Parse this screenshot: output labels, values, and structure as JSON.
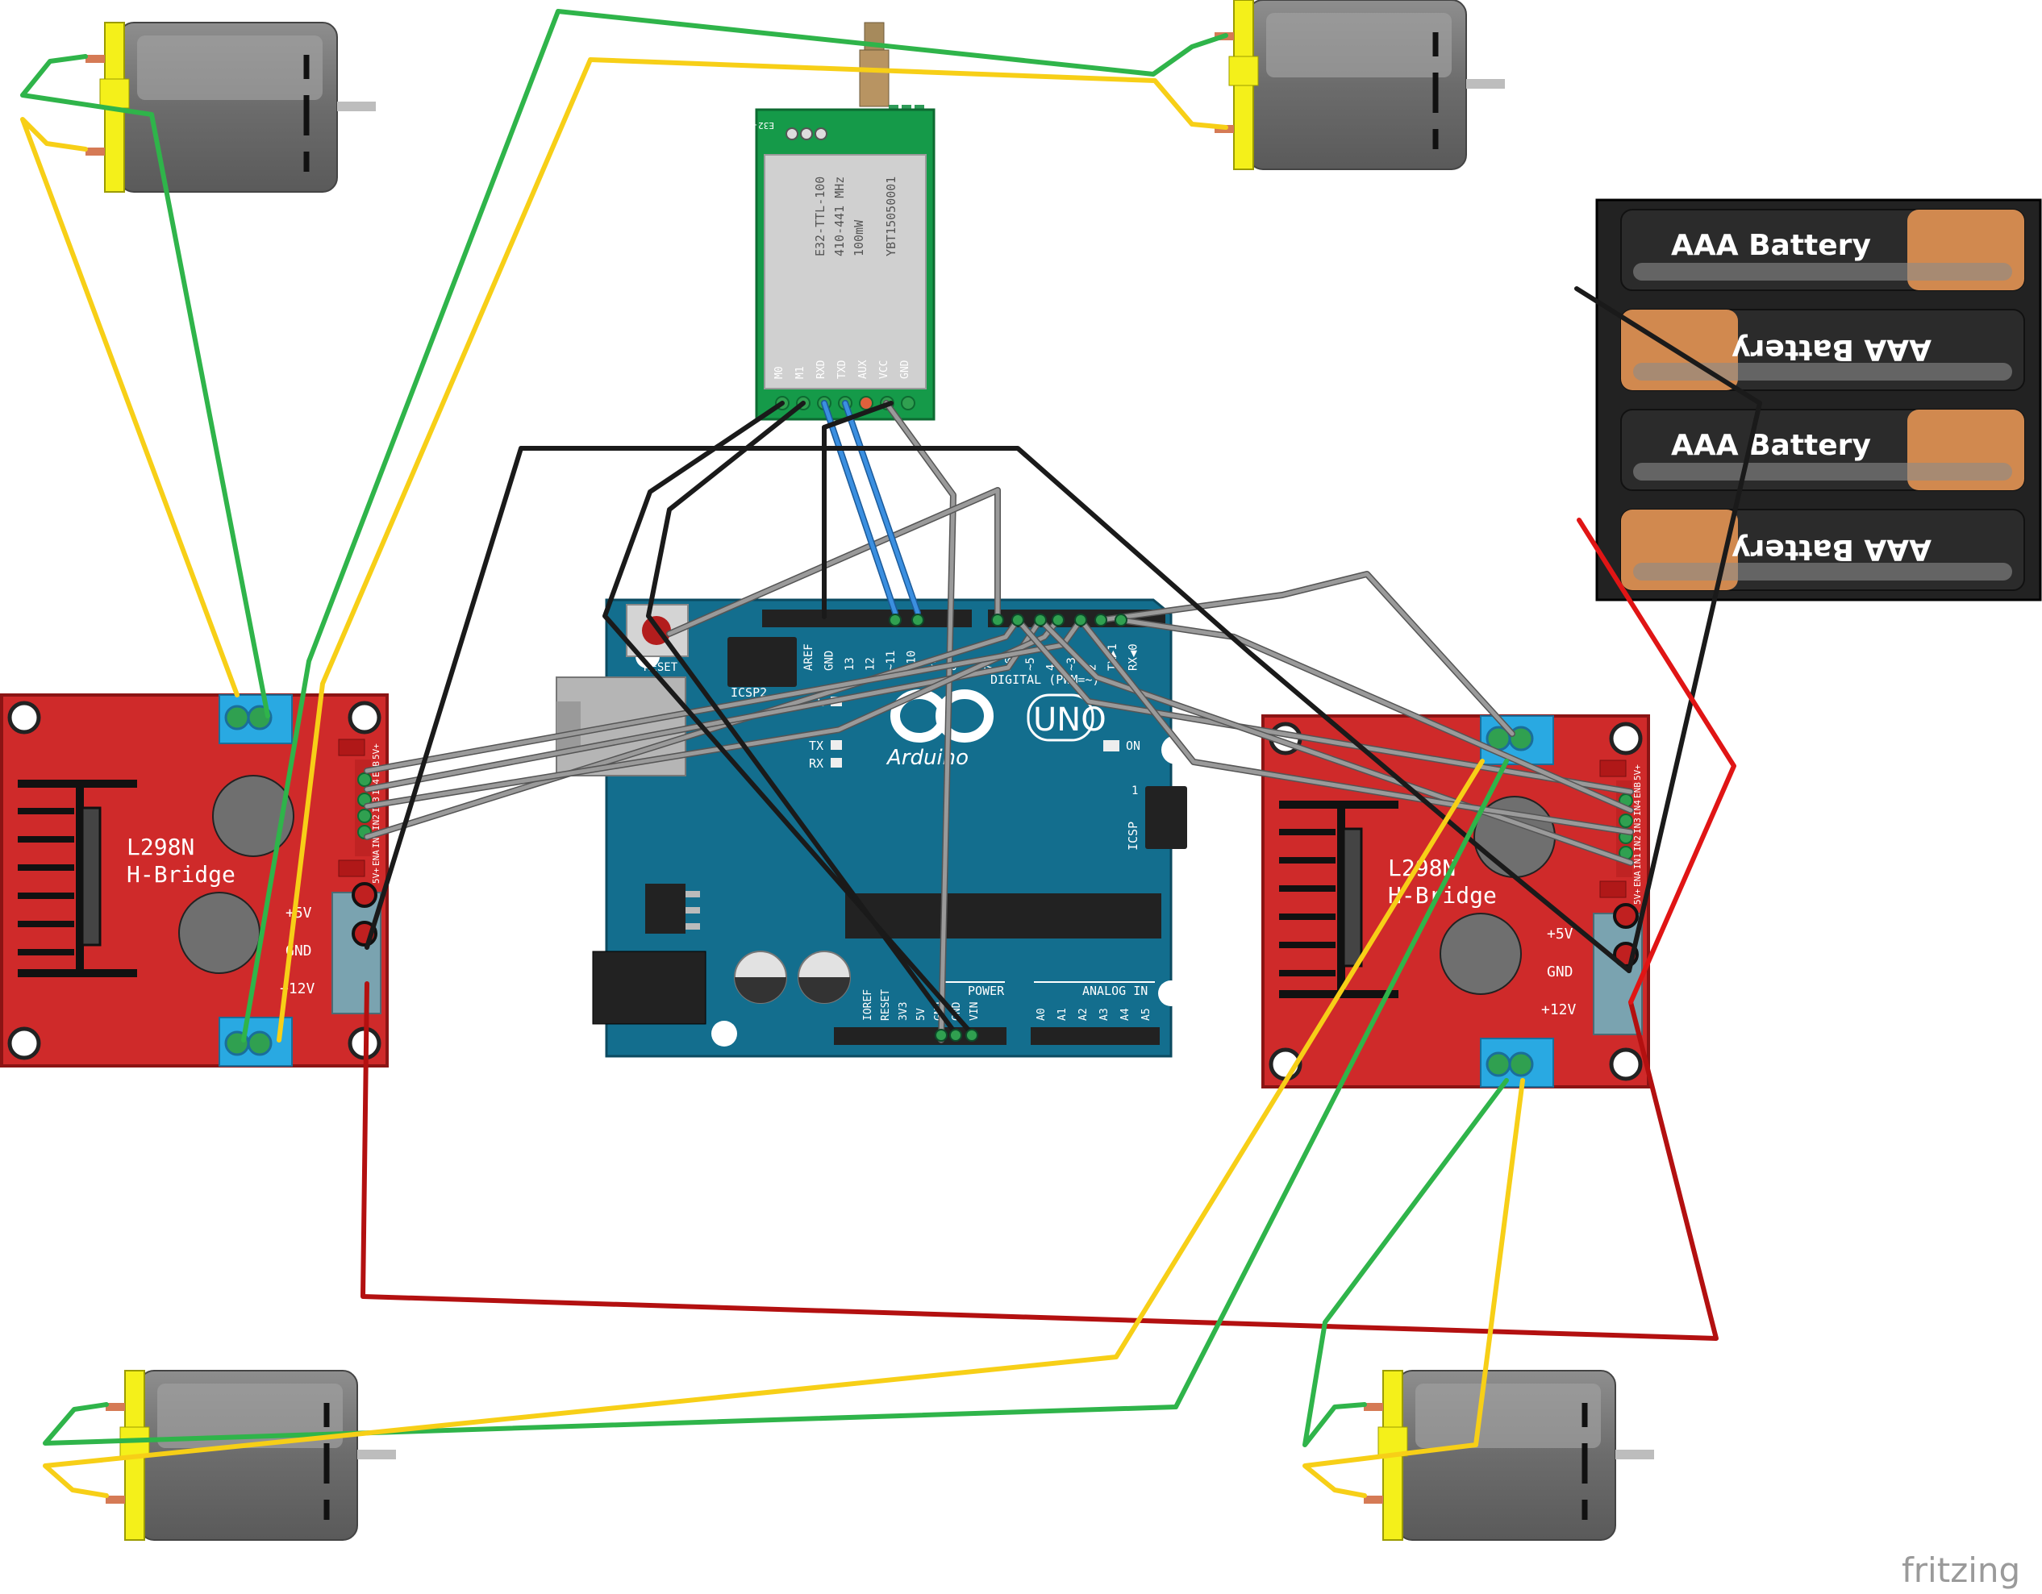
{
  "radio": {
    "board_label": "E32-TTL-100 V2.1",
    "model": "E32-TTL-100",
    "freq": "410-441 MHz",
    "power": "100mW",
    "serial": "YBT15050001",
    "pins": [
      "M0",
      "M1",
      "RXD",
      "TXD",
      "AUX",
      "VCC",
      "GND"
    ]
  },
  "arduino": {
    "uno": "UNO",
    "brand": "Arduino",
    "reset": "RESET",
    "icsp2": "ICSP2",
    "icsp": "ICSP",
    "icsp_pin": "1",
    "digital": "DIGITAL (PWM=~)",
    "on": "ON",
    "l": "L",
    "tx": "TX",
    "rx": "RX",
    "header_pins": [
      "AREF",
      "GND",
      "13",
      "12",
      "~11",
      "~10",
      "~9",
      "8",
      "7",
      "~6",
      "~5",
      "4",
      "~3",
      "2",
      "TX▶1",
      "RX◀0"
    ],
    "power_label": "POWER",
    "power_pins": [
      "IOREF",
      "RESET",
      "3V3",
      "5V",
      "GND",
      "GND",
      "VIN"
    ],
    "analog_label": "ANALOG IN",
    "analog_pins": [
      "A0",
      "A1",
      "A2",
      "A3",
      "A4",
      "A5"
    ]
  },
  "hbridge": {
    "title_line1": "L298N",
    "title_line2": "H-Bridge",
    "label_5v": "+5V",
    "label_gnd": "GND",
    "label_12v": "+12V",
    "enable_pins": [
      "5V+",
      "ENB",
      "IN4",
      "IN3",
      "IN2",
      "IN1",
      "ENA",
      "5V+"
    ]
  },
  "battery": {
    "cells": [
      "AAA Battery",
      "AAA Battery",
      "AAA Battery",
      "AAA Battery"
    ]
  },
  "watermark": "fritzing",
  "colors": {
    "wire_green": "#2fb44a",
    "wire_yellow": "#f7cf17",
    "wire_black": "#222222",
    "wire_red": "#cc1111",
    "wire_gray": "#8c8c8c",
    "wire_blue": "#2a7fd4",
    "hbridge_red": "#cf2a2a",
    "arduino_blue": "#136e8e",
    "radio_green": "#159a49",
    "motor_yellow": "#f4f01a"
  }
}
